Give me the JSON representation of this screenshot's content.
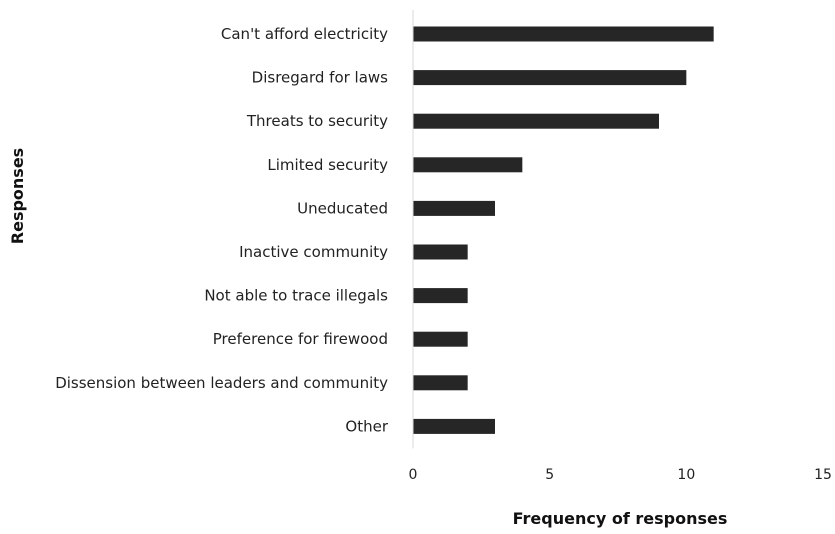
{
  "chart_data": {
    "type": "bar",
    "orientation": "horizontal",
    "title": "",
    "xlabel": "Frequency of responses",
    "ylabel": "Responses",
    "categories": [
      "Can't afford electricity",
      "Disregard for laws",
      "Threats to security",
      "Limited security",
      "Uneducated",
      "Inactive community",
      "Not able to trace illegals",
      "Preference for firewood",
      "Dissension between leaders and community",
      "Other"
    ],
    "values": [
      11,
      10,
      9,
      4,
      3,
      2,
      2,
      2,
      2,
      3
    ],
    "xlim": [
      0,
      15
    ],
    "xticks": [
      "0",
      "5",
      "10",
      "15"
    ],
    "grid": false,
    "legend": "none",
    "bar_color": "#262626"
  }
}
